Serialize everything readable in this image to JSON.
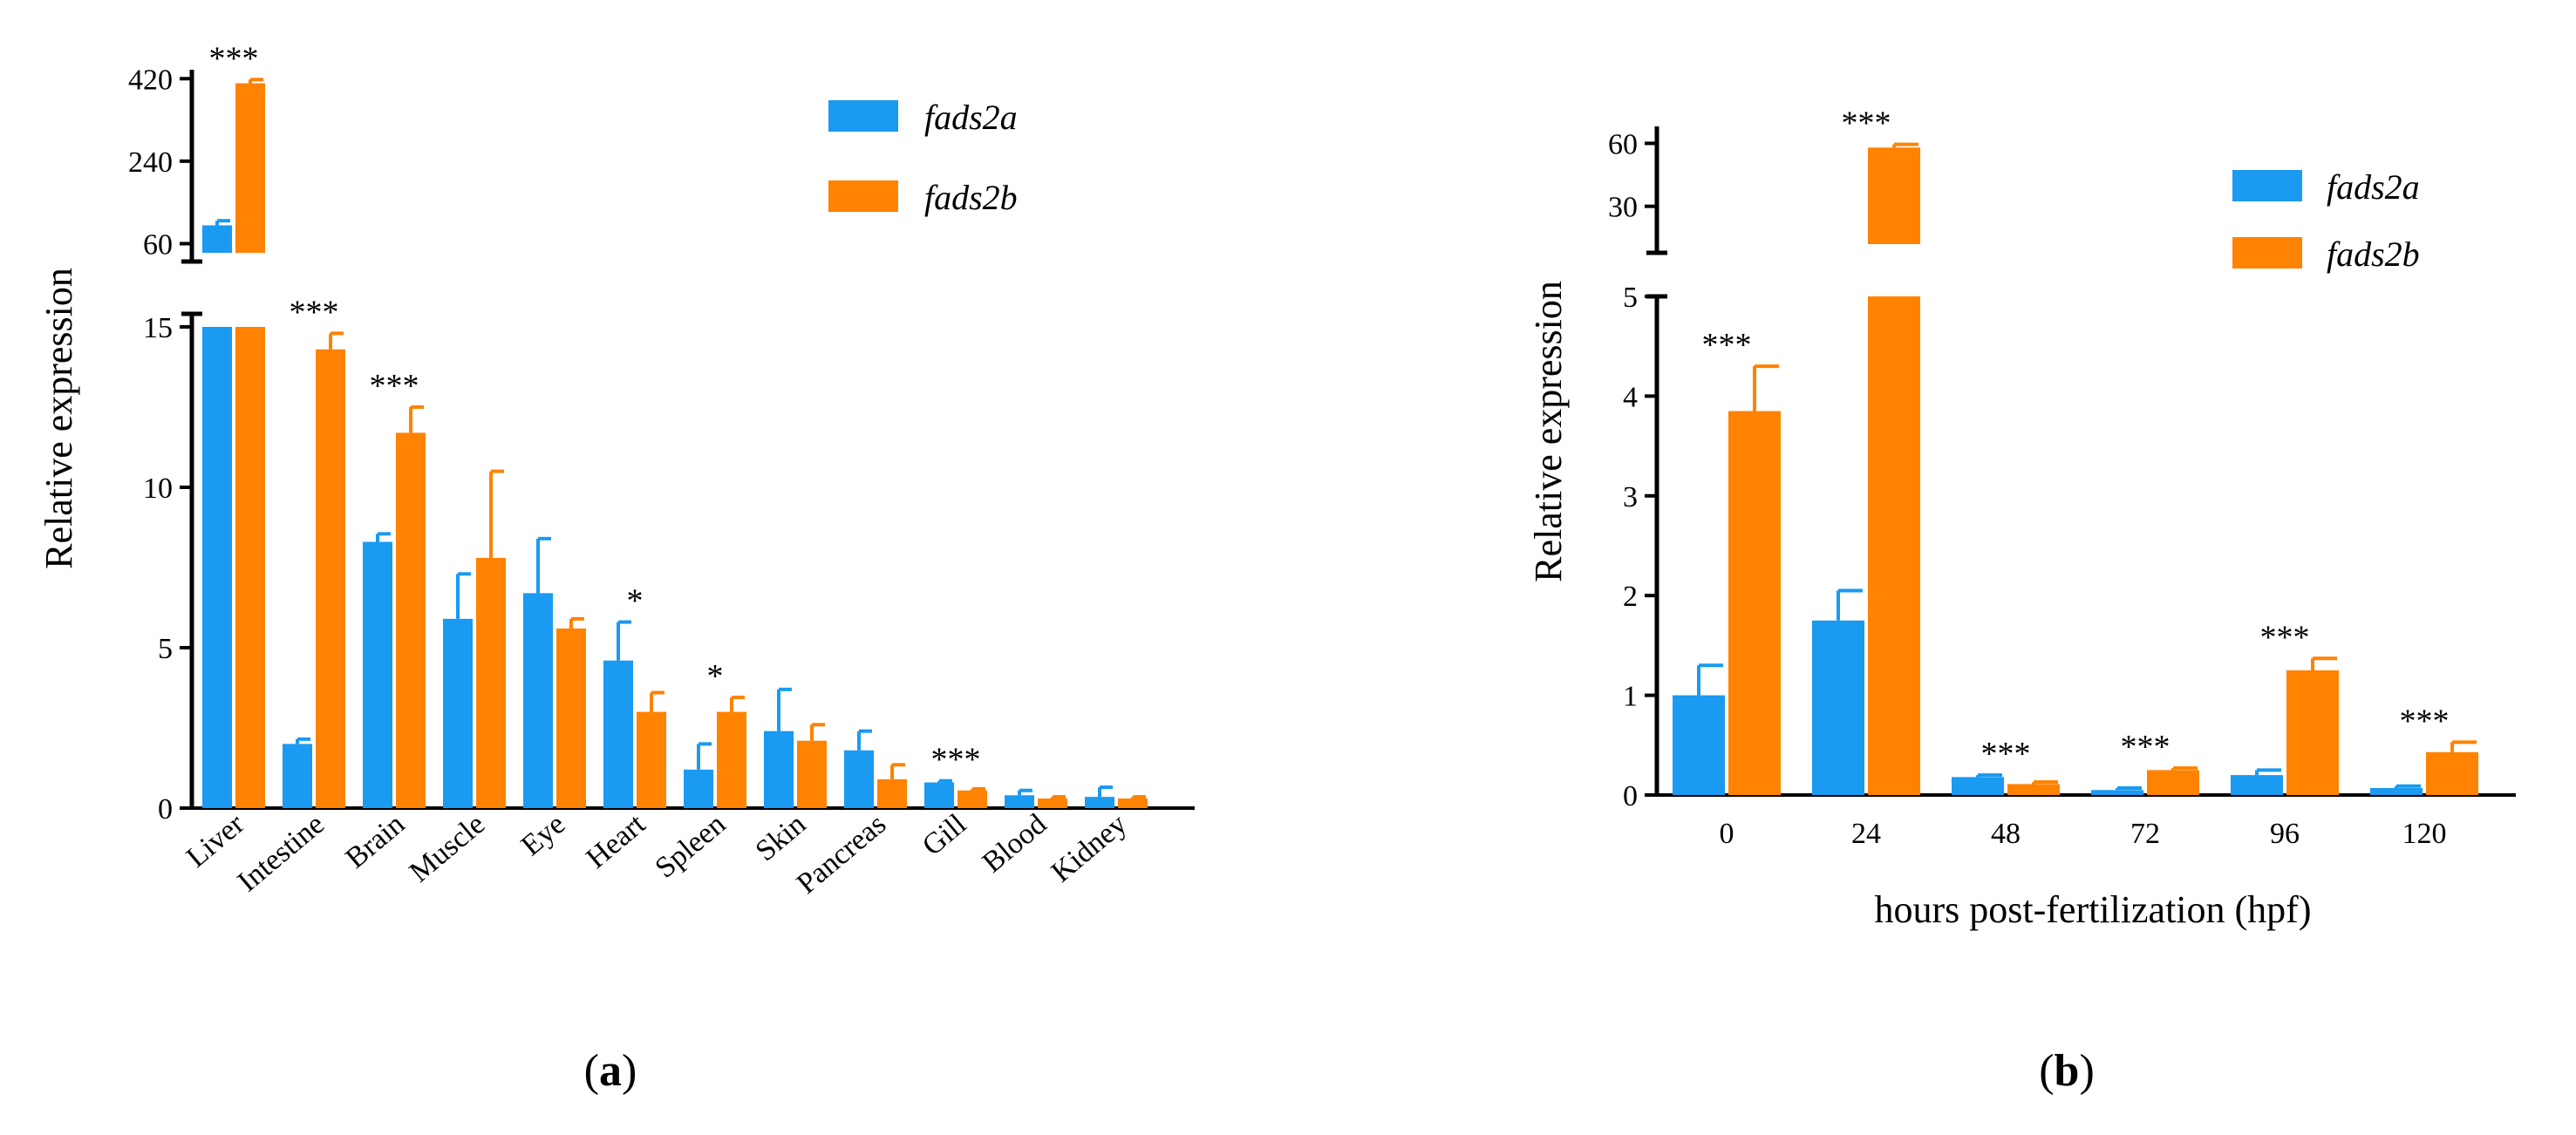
{
  "colors": {
    "fads2a": "#1a9af0",
    "fads2b": "#ff8200",
    "axis": "#000000"
  },
  "chart_data": [
    {
      "type": "bar",
      "panel_label": "a",
      "ylabel": "Relative expression",
      "xlabel": "",
      "categories": [
        "Liver",
        "Intestine",
        "Brain",
        "Muscle",
        "Eye",
        "Heart",
        "Spleen",
        "Skin",
        "Pancreas",
        "Gill",
        "Blood",
        "Kidney"
      ],
      "series": [
        {
          "name": "fads2a",
          "values": [
            100,
            2.0,
            8.3,
            5.9,
            6.7,
            4.6,
            1.2,
            2.4,
            1.8,
            0.8,
            0.4,
            0.35
          ],
          "errors": [
            10,
            0.15,
            0.25,
            1.4,
            1.7,
            1.2,
            0.8,
            1.3,
            0.6,
            0.05,
            0.15,
            0.3
          ]
        },
        {
          "name": "fads2b",
          "values": [
            410,
            14.3,
            11.7,
            7.8,
            5.6,
            3.0,
            3.0,
            2.1,
            0.9,
            0.55,
            0.3,
            0.3
          ],
          "errors": [
            8,
            0.5,
            0.8,
            2.7,
            0.3,
            0.6,
            0.45,
            0.5,
            0.45,
            0.05,
            0.05,
            0.05
          ]
        }
      ],
      "significance": [
        "***",
        "***",
        "***",
        "",
        "",
        "*",
        "*",
        "",
        "",
        "***",
        "",
        ""
      ],
      "ylim_lower": [
        0,
        15
      ],
      "yticks_lower": [
        "0",
        "5",
        "10",
        "15"
      ],
      "ylim_upper": [
        40,
        430
      ],
      "yticks_upper": [
        "60",
        "240",
        "420"
      ],
      "legend": [
        "fads2a",
        "fads2b"
      ],
      "legend_position": "top-right"
    },
    {
      "type": "bar",
      "panel_label": "b",
      "ylabel": "Relative expression",
      "xlabel": "hours post-fertilization (hpf)",
      "categories": [
        "0",
        "24",
        "48",
        "72",
        "96",
        "120"
      ],
      "series": [
        {
          "name": "fads2a",
          "values": [
            1.0,
            1.75,
            0.18,
            0.05,
            0.2,
            0.07
          ],
          "errors": [
            0.3,
            0.3,
            0.02,
            0.02,
            0.05,
            0.02
          ]
        },
        {
          "name": "fads2b",
          "values": [
            3.85,
            58,
            0.11,
            0.25,
            1.25,
            0.43
          ],
          "errors": [
            0.45,
            1.5,
            0.02,
            0.02,
            0.12,
            0.1
          ]
        }
      ],
      "significance": [
        "***",
        "***",
        "***",
        "***",
        "***",
        "***"
      ],
      "ylim_lower": [
        0,
        5
      ],
      "yticks_lower": [
        "0",
        "1",
        "2",
        "3",
        "4",
        "5"
      ],
      "ylim_upper": [
        12,
        66
      ],
      "yticks_upper": [
        "30",
        "60"
      ],
      "legend": [
        "fads2a",
        "fads2b"
      ],
      "legend_position": "top-right"
    }
  ]
}
